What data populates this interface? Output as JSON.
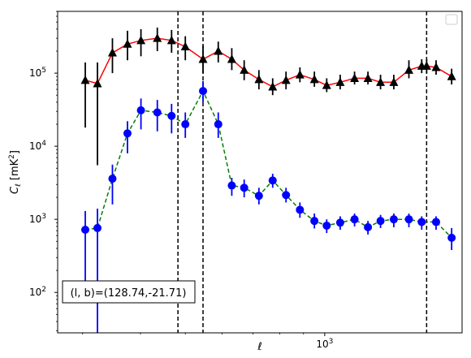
{
  "chart_data": {
    "type": "line",
    "xscale": "log",
    "yscale": "log",
    "xlim": [
      265,
      1980
    ],
    "ylim": [
      28,
      700000
    ],
    "xlabel": "ℓ",
    "ylabel": "C_ℓ  [mK²]",
    "x_tick_labels": [
      {
        "value": 1000,
        "label": "10^3"
      }
    ],
    "y_tick_labels": [
      {
        "value": 100,
        "label": "10^2"
      },
      {
        "value": 1000,
        "label": "10^3"
      },
      {
        "value": 10000,
        "label": "10^4"
      },
      {
        "value": 100000,
        "label": "10^5"
      }
    ],
    "annotation": "(l, b)=(128.74,-21.71)",
    "legend_placement": "top-right",
    "vlines": [
      482,
      546,
      1660
    ],
    "series": [
      {
        "marker": "triangle",
        "line_color": "#ff0000",
        "line_style": "solid",
        "marker_color": "#000000",
        "err_color": "#000000",
        "x": [
          304,
          323,
          348,
          375,
          401,
          435,
          467,
          500,
          546,
          589,
          630,
          670,
          721,
          772,
          825,
          884,
          950,
          1010,
          1080,
          1160,
          1240,
          1320,
          1410,
          1520,
          1620,
          1660,
          1740,
          1880
        ],
        "y": [
          80000,
          72000,
          190000,
          250000,
          280000,
          300000,
          280000,
          230000,
          155000,
          200000,
          155000,
          110000,
          82000,
          65000,
          80000,
          95000,
          82000,
          68000,
          75000,
          85000,
          85000,
          75000,
          75000,
          110000,
          125000,
          125000,
          120000,
          90000
        ],
        "yerr_low": [
          18000,
          5500,
          100000,
          150000,
          170000,
          200000,
          190000,
          150000,
          100000,
          140000,
          110000,
          80000,
          60000,
          50000,
          60000,
          75000,
          65000,
          55000,
          60000,
          70000,
          70000,
          60000,
          60000,
          85000,
          100000,
          100000,
          95000,
          70000
        ],
        "yerr_high": [
          140000,
          140000,
          300000,
          380000,
          400000,
          420000,
          390000,
          320000,
          240000,
          270000,
          220000,
          150000,
          110000,
          85000,
          105000,
          120000,
          105000,
          85000,
          95000,
          105000,
          105000,
          95000,
          95000,
          150000,
          155000,
          155000,
          150000,
          115000
        ]
      },
      {
        "marker": "circle",
        "line_color": "#008000",
        "line_style": "dashed",
        "marker_color": "#0000ff",
        "err_color": "#0000ff",
        "x": [
          304,
          323,
          348,
          375,
          401,
          435,
          467,
          500,
          546,
          589,
          630,
          670,
          721,
          772,
          825,
          884,
          950,
          1010,
          1080,
          1160,
          1240,
          1320,
          1410,
          1520,
          1620,
          1740,
          1880
        ],
        "y": [
          720,
          760,
          3600,
          15000,
          31000,
          29000,
          26000,
          20000,
          57000,
          20000,
          2900,
          2700,
          2100,
          3400,
          2150,
          1350,
          950,
          820,
          900,
          1000,
          780,
          950,
          1000,
          1000,
          920,
          920,
          560
        ],
        "yerr_low": [
          140,
          20,
          1600,
          8000,
          17000,
          16000,
          15000,
          13000,
          40000,
          13000,
          2100,
          2000,
          1600,
          2700,
          1700,
          1050,
          750,
          650,
          720,
          800,
          620,
          760,
          780,
          780,
          720,
          720,
          380
        ],
        "yerr_high": [
          1300,
          1400,
          5600,
          22000,
          45000,
          43000,
          38000,
          29000,
          78000,
          29000,
          3700,
          3500,
          2700,
          4200,
          2700,
          1700,
          1200,
          1000,
          1100,
          1200,
          950,
          1150,
          1200,
          1200,
          1100,
          1100,
          760
        ]
      }
    ]
  }
}
